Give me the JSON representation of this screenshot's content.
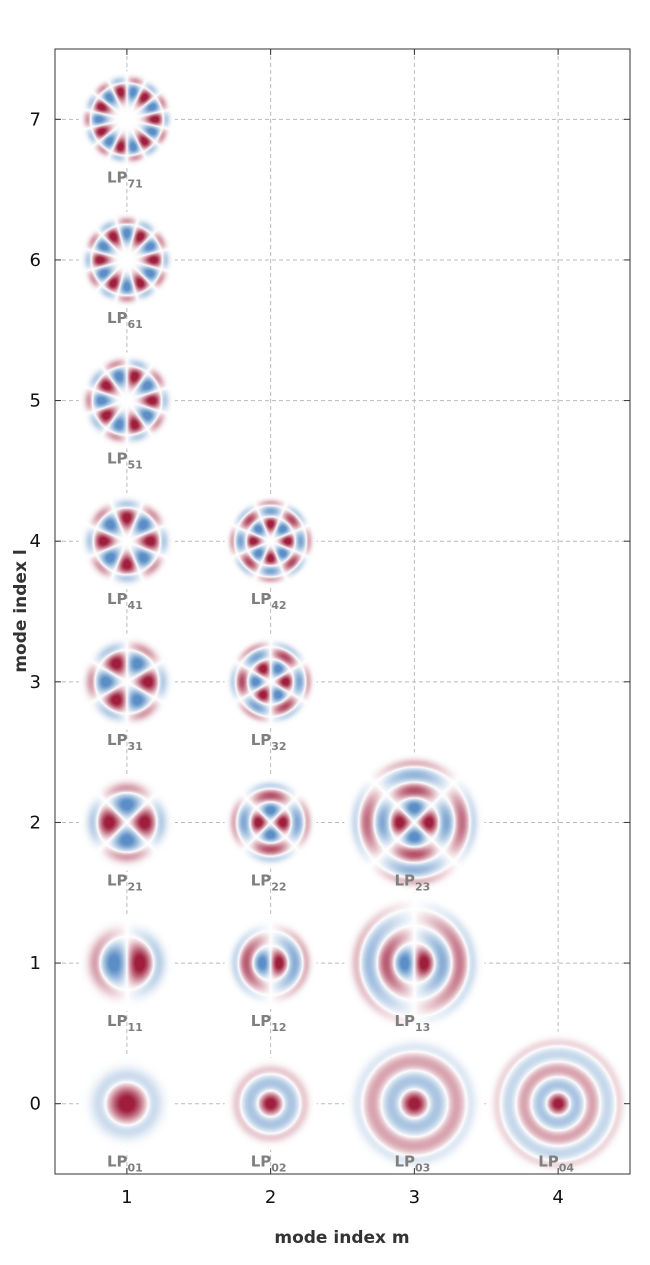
{
  "chart_data": {
    "type": "scatter",
    "xlabel": "mode index m",
    "ylabel": "mode index l",
    "xlim": [
      0.5,
      4.5
    ],
    "ylim": [
      -0.5,
      7.5
    ],
    "x_ticks": [
      "1",
      "2",
      "3",
      "4"
    ],
    "y_ticks": [
      "0",
      "1",
      "2",
      "3",
      "4",
      "5",
      "6",
      "7"
    ],
    "grid": true,
    "colors": {
      "positive": "#9e1a3c",
      "negative": "#5b8ec6",
      "grid": "#bbbbbb"
    },
    "label_prefix": "LP",
    "modes": [
      {
        "m": 1,
        "l": 0,
        "sub": "01"
      },
      {
        "m": 2,
        "l": 0,
        "sub": "02"
      },
      {
        "m": 3,
        "l": 0,
        "sub": "03"
      },
      {
        "m": 4,
        "l": 0,
        "sub": "04"
      },
      {
        "m": 1,
        "l": 1,
        "sub": "11"
      },
      {
        "m": 2,
        "l": 1,
        "sub": "12"
      },
      {
        "m": 3,
        "l": 1,
        "sub": "13"
      },
      {
        "m": 1,
        "l": 2,
        "sub": "21"
      },
      {
        "m": 2,
        "l": 2,
        "sub": "22"
      },
      {
        "m": 3,
        "l": 2,
        "sub": "23"
      },
      {
        "m": 1,
        "l": 3,
        "sub": "31"
      },
      {
        "m": 2,
        "l": 3,
        "sub": "32"
      },
      {
        "m": 1,
        "l": 4,
        "sub": "41"
      },
      {
        "m": 2,
        "l": 4,
        "sub": "42"
      },
      {
        "m": 1,
        "l": 5,
        "sub": "51"
      },
      {
        "m": 1,
        "l": 6,
        "sub": "61"
      },
      {
        "m": 1,
        "l": 7,
        "sub": "71"
      }
    ]
  }
}
